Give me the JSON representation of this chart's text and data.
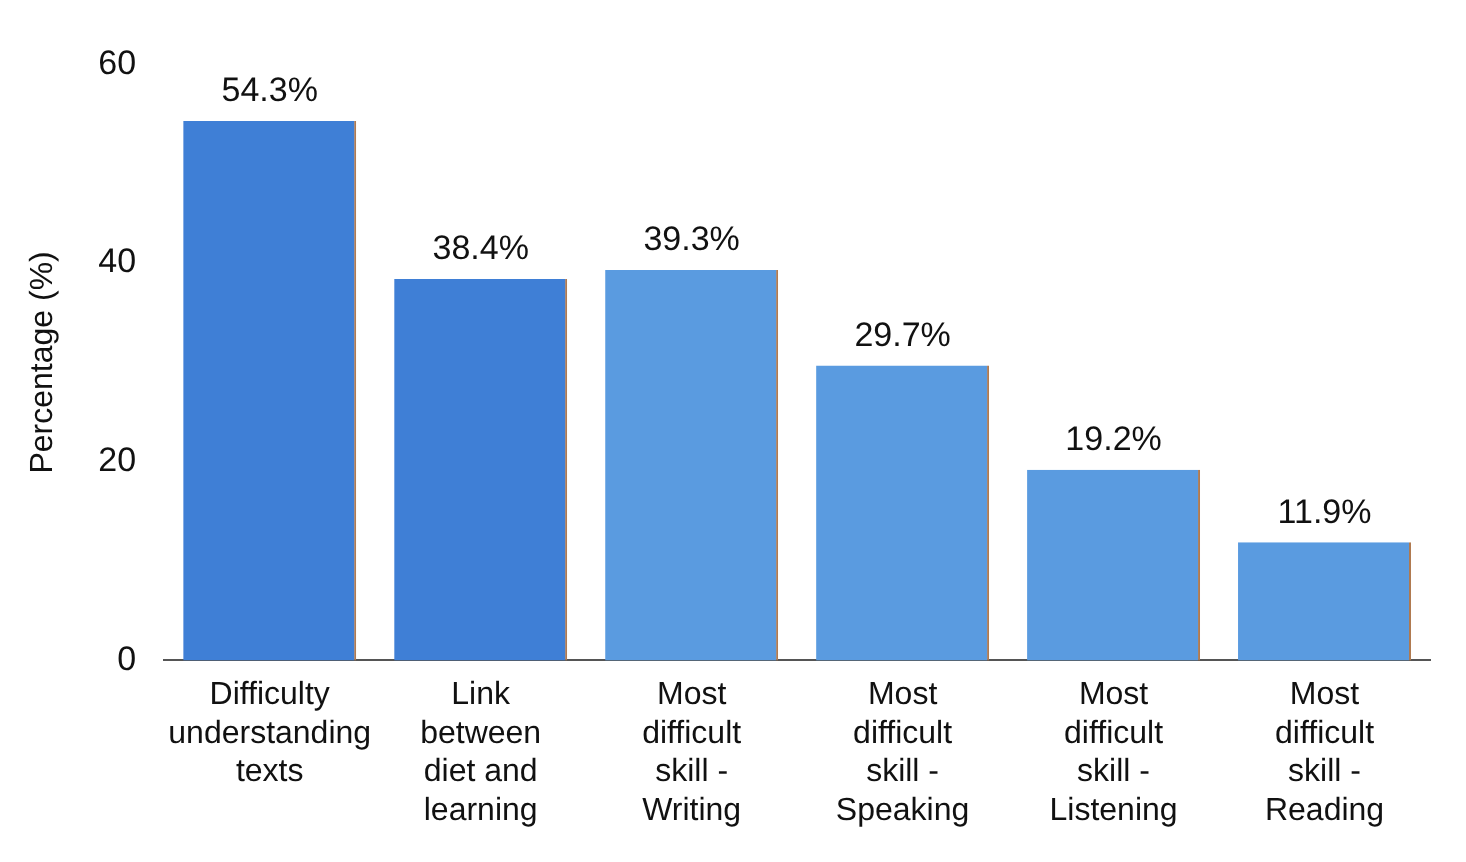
{
  "chart_data": {
    "type": "bar",
    "ylabel": "Percentage (%)",
    "categories": [
      "Difficulty understanding texts",
      "Link between diet and learning",
      "Most difficult skill - Writing",
      "Most difficult skill - Speaking",
      "Most difficult skill - Listening",
      "Most difficult skill - Reading"
    ],
    "values": [
      54.3,
      38.4,
      39.3,
      29.7,
      19.2,
      11.9
    ],
    "value_labels": [
      "54.3%",
      "38.4%",
      "39.3%",
      "29.7%",
      "19.2%",
      "11.9%"
    ],
    "colors": [
      "#3f7fd6",
      "#3f7fd6",
      "#5a9be0",
      "#5a9be0",
      "#5a9be0",
      "#5a9be0"
    ],
    "ylim": [
      0,
      60
    ],
    "yticks": [
      0,
      20,
      40,
      60
    ],
    "grid": false,
    "legend": false
  }
}
